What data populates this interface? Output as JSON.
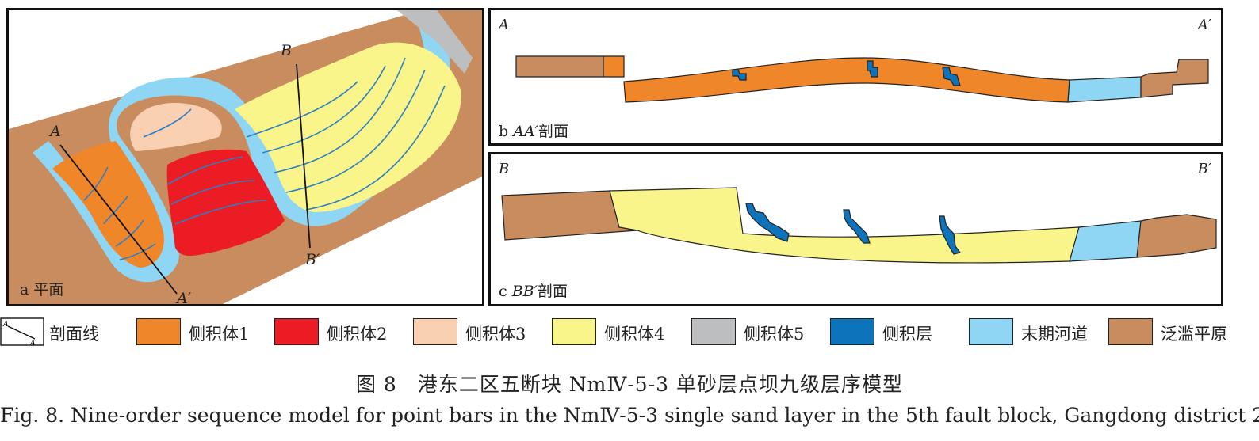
{
  "panels": {
    "plan": {
      "label_letter": "a",
      "label_text": "平面",
      "section_A": "A",
      "section_A_prime": "A′",
      "section_B": "B",
      "section_B_prime": "B′"
    },
    "section_aa": {
      "left_label": "A",
      "right_label": "A′",
      "label_letter": "b",
      "label_italic": "AA′",
      "label_text": "剖面"
    },
    "section_bb": {
      "left_label": "B",
      "right_label": "B′",
      "label_letter": "c",
      "label_italic": "BB′",
      "label_text": "剖面"
    }
  },
  "legend": {
    "section_line": {
      "label": "剖面线",
      "icon": "section-line-icon",
      "end_a": "A",
      "end_b": "A′"
    },
    "items": [
      {
        "label": "侧积体1",
        "color": "#F0862A"
      },
      {
        "label": "侧积体2",
        "color": "#EC1C24"
      },
      {
        "label": "侧积体3",
        "color": "#FAD0B3"
      },
      {
        "label": "侧积体4",
        "color": "#FAF58A"
      },
      {
        "label": "侧积体5",
        "color": "#BDBEC0"
      },
      {
        "label": "侧积层",
        "color": "#0D73BB"
      },
      {
        "label": "末期河道",
        "color": "#8FD6F4"
      },
      {
        "label": "泛滥平原",
        "color": "#C98C5E"
      }
    ]
  },
  "caption": {
    "zh": "图 8　港东二区五断块 NmⅣ-5-3 单砂层点坝九级层序模型",
    "en": "Fig. 8.  Nine-order sequence model for point bars in the NmⅣ-5-3 single sand layer in the 5th fault block, Gangdong district 2"
  }
}
